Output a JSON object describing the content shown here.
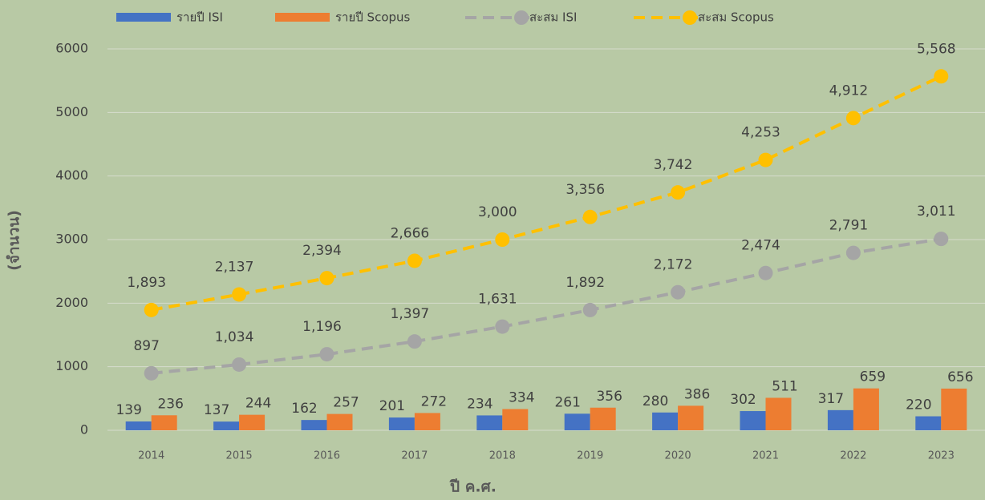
{
  "chart_data": {
    "type": "combo",
    "x_label": "ปี ค.ศ.",
    "y_label": "(จำนวน)",
    "categories": [
      "2014",
      "2015",
      "2016",
      "2017",
      "2018",
      "2019",
      "2020",
      "2021",
      "2022",
      "2023"
    ],
    "series": [
      {
        "name": "รายปี ISI",
        "type": "bar",
        "color": "#4472c4",
        "values": [
          139,
          137,
          162,
          201,
          234,
          261,
          280,
          302,
          317,
          220
        ]
      },
      {
        "name": "รายปี Scopus",
        "type": "bar",
        "color": "#ed7d31",
        "values": [
          236,
          244,
          257,
          272,
          334,
          356,
          386,
          511,
          659,
          656
        ]
      },
      {
        "name": "สะสม ISI",
        "type": "line",
        "color": "#a5a5a5",
        "values": [
          897,
          1034,
          1196,
          1397,
          1631,
          1892,
          2172,
          2474,
          2791,
          3011
        ],
        "value_labels": [
          "897",
          "1,034",
          "1,196",
          "1,397",
          "1,631",
          "1,892",
          "2,172",
          "2,474",
          "2,791",
          "3,011"
        ]
      },
      {
        "name": "สะสม Scopus",
        "type": "line",
        "color": "#ffc000",
        "values": [
          1893,
          2137,
          2394,
          2666,
          3000,
          3356,
          3742,
          4253,
          4912,
          5568
        ],
        "value_labels": [
          "1,893",
          "2,137",
          "2,394",
          "2,666",
          "3,000",
          "3,356",
          "3,742",
          "4,253",
          "4,912",
          "5,568"
        ]
      }
    ],
    "ylim": [
      0,
      6000
    ],
    "yticks": [
      0,
      1000,
      2000,
      3000,
      4000,
      5000,
      6000
    ],
    "grid": true,
    "legend": "top"
  }
}
